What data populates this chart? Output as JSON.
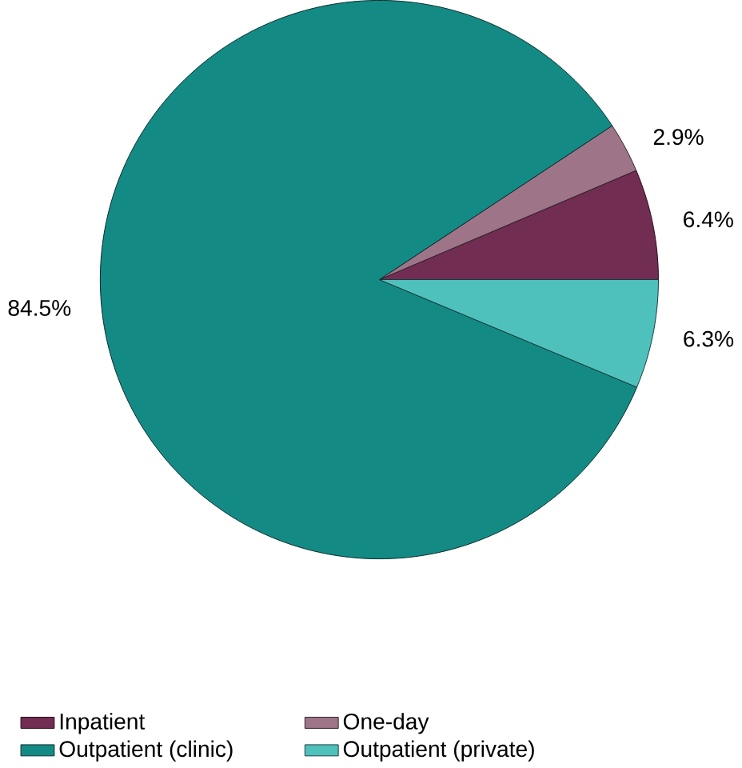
{
  "chart_data": {
    "type": "pie",
    "categories": [
      "Inpatient",
      "One-day",
      "Outpatient (clinic)",
      "Outpatient (private)"
    ],
    "values": [
      6.4,
      2.9,
      84.5,
      6.3
    ],
    "value_labels": [
      "6.4%",
      "2.9%",
      "84.5%",
      "6.3%"
    ],
    "colors": [
      "#722d52",
      "#9e7489",
      "#148a85",
      "#4fc1bd"
    ],
    "legend": "bottom"
  }
}
